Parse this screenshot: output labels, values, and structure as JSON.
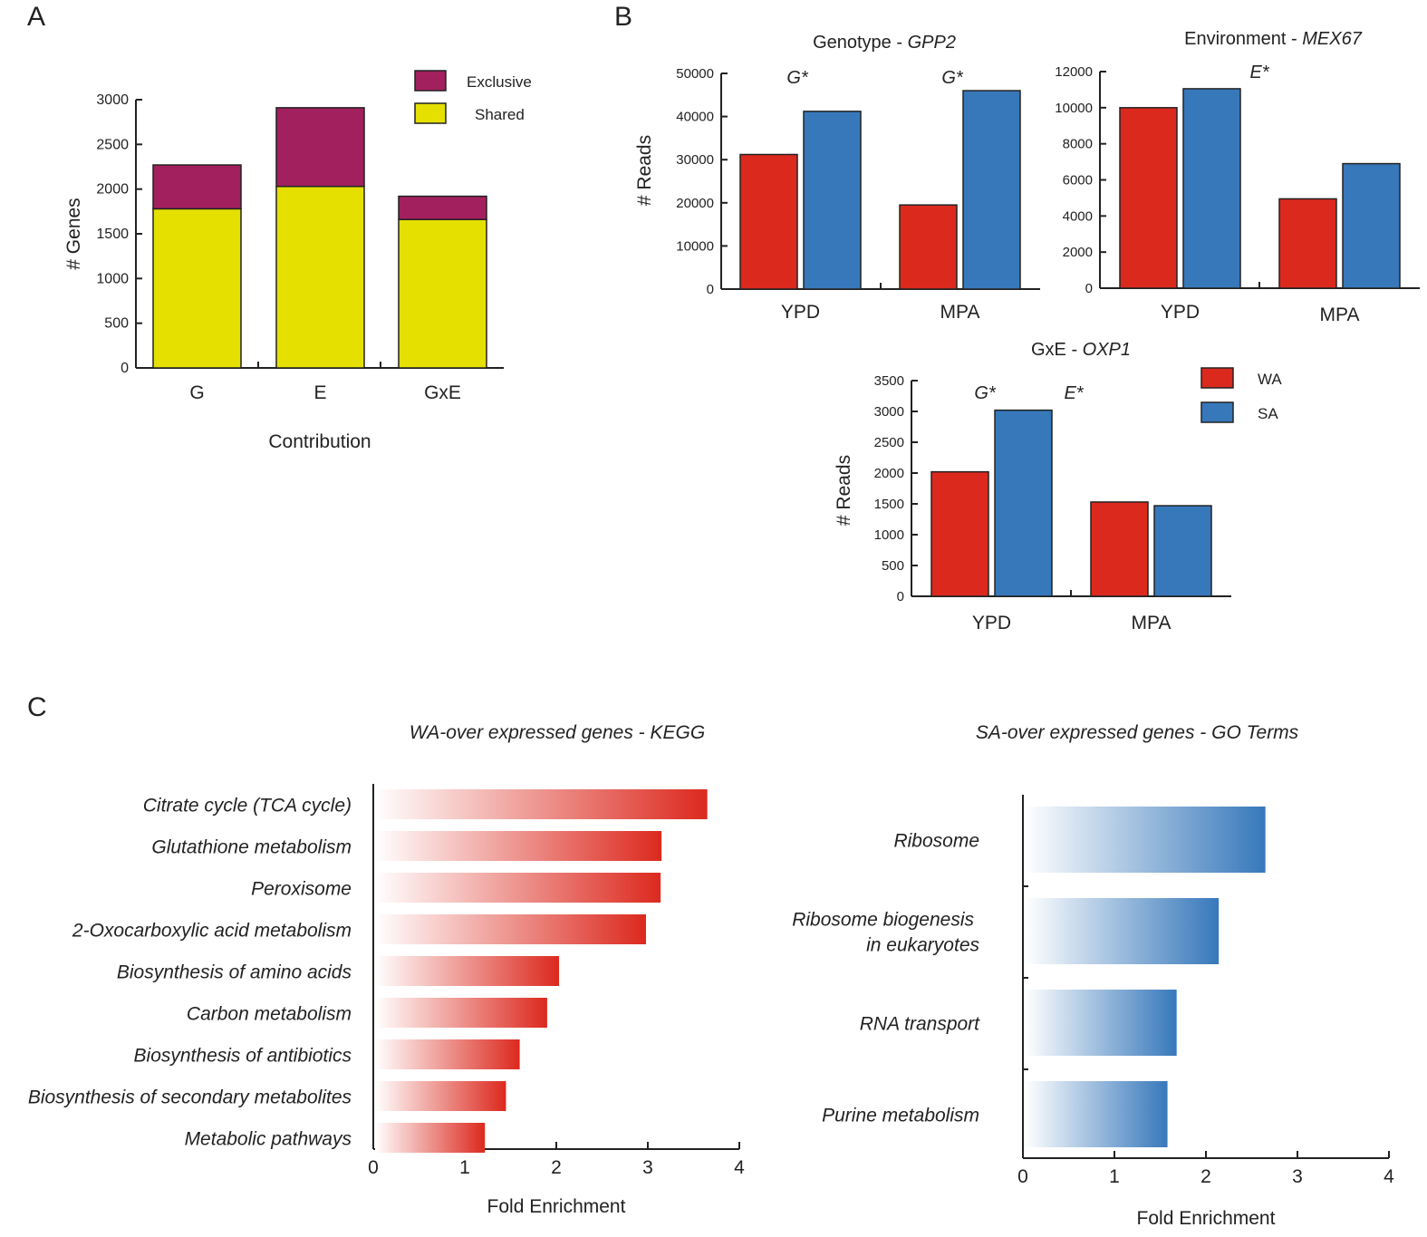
{
  "colors": {
    "exclusive": "#a3205e",
    "shared": "#e5e000",
    "wa": "#dc291e",
    "sa": "#3778bb",
    "axis": "#222222"
  },
  "panel_labels": {
    "a": "A",
    "b": "B",
    "c": "C"
  },
  "chart_data": [
    {
      "id": "A",
      "type": "bar",
      "stacked": true,
      "categories": [
        "G",
        "E",
        "GxE"
      ],
      "series": [
        {
          "name": "Shared",
          "values": [
            1780,
            2030,
            1660
          ]
        },
        {
          "name": "Exclusive",
          "values": [
            490,
            880,
            260
          ]
        }
      ],
      "title": "",
      "xlabel": "Contribution",
      "ylabel": "# Genes",
      "ylim": [
        0,
        3000
      ],
      "yticks": [
        0,
        500,
        1000,
        1500,
        2000,
        2500,
        3000
      ],
      "legend": [
        "Exclusive",
        "Shared"
      ]
    },
    {
      "id": "B1",
      "type": "bar",
      "title_prefix": "Genotype - ",
      "title_gene": "GPP2",
      "categories": [
        "YPD",
        "MPA"
      ],
      "series": [
        {
          "name": "WA",
          "values": [
            31200,
            19500
          ]
        },
        {
          "name": "SA",
          "values": [
            41200,
            46000
          ]
        }
      ],
      "annotations": [
        "G*",
        "G*"
      ],
      "ylabel": "# Reads",
      "ylim": [
        0,
        50000
      ],
      "yticks": [
        0,
        10000,
        20000,
        30000,
        40000,
        50000
      ]
    },
    {
      "id": "B2",
      "type": "bar",
      "title_prefix": "Environment - ",
      "title_gene": "MEX67",
      "categories": [
        "YPD",
        "MPA"
      ],
      "series": [
        {
          "name": "WA",
          "values": [
            10000,
            4950
          ]
        },
        {
          "name": "SA",
          "values": [
            11050,
            6900
          ]
        }
      ],
      "annotations": [
        "E*"
      ],
      "ylabel": "",
      "ylim": [
        0,
        12000
      ],
      "yticks": [
        0,
        2000,
        4000,
        6000,
        8000,
        10000,
        12000
      ]
    },
    {
      "id": "B3",
      "type": "bar",
      "title_prefix": "GxE - ",
      "title_gene": "OXP1",
      "categories": [
        "YPD",
        "MPA"
      ],
      "series": [
        {
          "name": "WA",
          "values": [
            2020,
            1530
          ]
        },
        {
          "name": "SA",
          "values": [
            3020,
            1470
          ]
        }
      ],
      "annotations": [
        "G*",
        "E*"
      ],
      "ylabel": "# Reads",
      "ylim": [
        0,
        3500
      ],
      "yticks": [
        0,
        500,
        1000,
        1500,
        2000,
        2500,
        3000,
        3500
      ],
      "legend": [
        "WA",
        "SA"
      ]
    },
    {
      "id": "C1",
      "type": "bar",
      "orientation": "horizontal",
      "title": "WA-over expressed genes - KEGG",
      "categories": [
        "Citrate cycle (TCA cycle)",
        "Glutathione metabolism",
        "Peroxisome",
        "2-Oxocarboxylic acid metabolism",
        "Biosynthesis of amino acids",
        "Carbon metabolism",
        "Biosynthesis of antibiotics",
        "Biosynthesis of secondary metabolites",
        "Metabolic pathways"
      ],
      "values": [
        3.65,
        3.15,
        3.14,
        2.98,
        2.03,
        1.9,
        1.6,
        1.45,
        1.22
      ],
      "xlabel": "Fold Enrichment",
      "xlim": [
        0,
        4
      ],
      "xticks": [
        0,
        1,
        2,
        3,
        4
      ]
    },
    {
      "id": "C2",
      "type": "bar",
      "orientation": "horizontal",
      "title": "SA-over expressed genes - GO Terms",
      "categories": [
        [
          "Ribosome"
        ],
        [
          "Ribosome biogenesis",
          "in eukaryotes"
        ],
        [
          "RNA transport"
        ],
        [
          "Purine metabolism"
        ]
      ],
      "values": [
        2.65,
        2.14,
        1.68,
        1.58
      ],
      "xlabel": "Fold Enrichment",
      "xlim": [
        0,
        4
      ],
      "xticks": [
        0,
        1,
        2,
        3,
        4
      ]
    }
  ]
}
